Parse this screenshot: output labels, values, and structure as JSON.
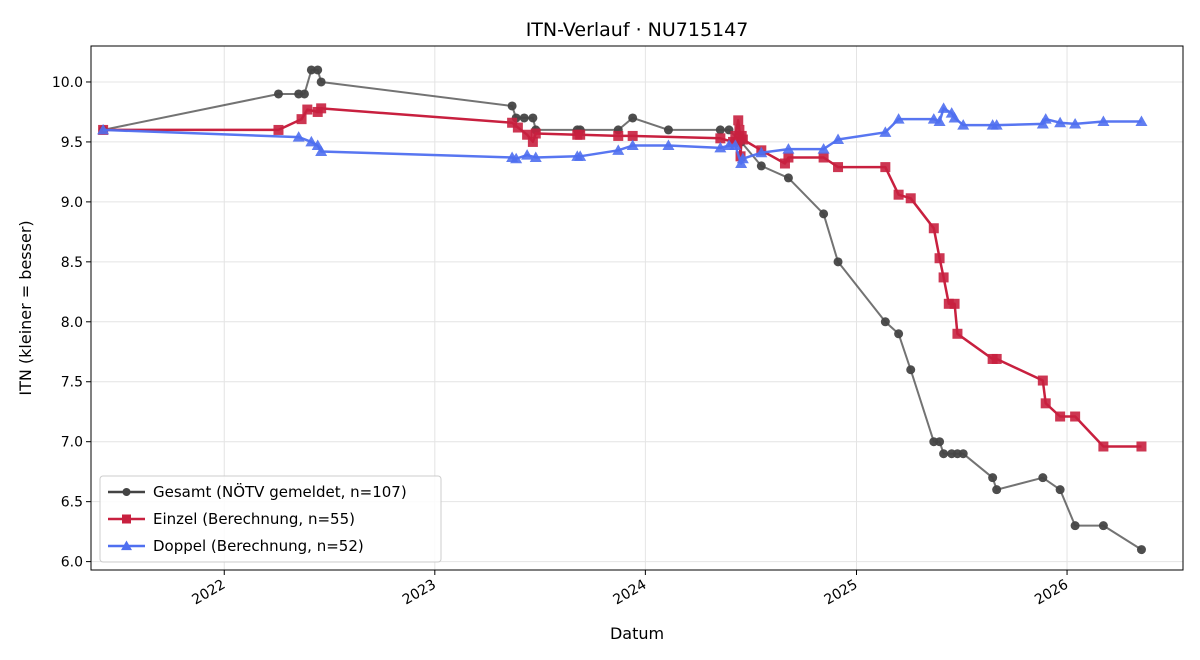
{
  "chart_data": {
    "type": "line",
    "title": "ITN-Verlauf · NU715147",
    "xlabel": "Datum",
    "ylabel": "ITN  (kleiner = besser)",
    "x_type": "date",
    "xlim": [
      "2021-05-15",
      "2026-07-21"
    ],
    "ylim": [
      5.93,
      10.3
    ],
    "x_ticks": [
      "2022-01-01",
      "2023-01-01",
      "2024-01-01",
      "2025-01-01",
      "2026-01-01"
    ],
    "x_tick_labels": [
      "2022",
      "2023",
      "2024",
      "2025",
      "2026"
    ],
    "y_ticks": [
      6.0,
      6.5,
      7.0,
      7.5,
      8.0,
      8.5,
      9.0,
      9.5,
      10.0
    ],
    "y_tick_labels": [
      "6.0",
      "6.5",
      "7.0",
      "7.5",
      "8.0",
      "8.5",
      "9.0",
      "9.5",
      "10.0"
    ],
    "grid": true,
    "legend_position": "lower-left",
    "series": [
      {
        "name": "Gesamt (NÖTV gemeldet, n=107)",
        "color": "#444444",
        "marker": "circle",
        "points": [
          [
            "2021-06-05",
            9.6
          ],
          [
            "2022-04-05",
            9.9
          ],
          [
            "2022-05-10",
            9.9
          ],
          [
            "2022-05-20",
            9.9
          ],
          [
            "2022-06-01",
            10.1
          ],
          [
            "2022-06-12",
            10.1
          ],
          [
            "2022-06-18",
            10.0
          ],
          [
            "2023-05-15",
            9.8
          ],
          [
            "2023-05-22",
            9.7
          ],
          [
            "2023-06-05",
            9.7
          ],
          [
            "2023-06-20",
            9.7
          ],
          [
            "2023-06-25",
            9.6
          ],
          [
            "2023-09-05",
            9.6
          ],
          [
            "2023-09-10",
            9.6
          ],
          [
            "2023-11-15",
            9.6
          ],
          [
            "2023-12-10",
            9.7
          ],
          [
            "2024-02-10",
            9.6
          ],
          [
            "2024-05-10",
            9.6
          ],
          [
            "2024-05-25",
            9.6
          ],
          [
            "2024-06-15",
            9.5
          ],
          [
            "2024-07-20",
            9.3
          ],
          [
            "2024-09-05",
            9.2
          ],
          [
            "2024-11-05",
            8.9
          ],
          [
            "2024-11-30",
            8.5
          ],
          [
            "2025-02-20",
            8.0
          ],
          [
            "2025-03-15",
            7.9
          ],
          [
            "2025-04-05",
            7.6
          ],
          [
            "2025-05-15",
            7.0
          ],
          [
            "2025-05-25",
            7.0
          ],
          [
            "2025-06-01",
            6.9
          ],
          [
            "2025-06-15",
            6.9
          ],
          [
            "2025-06-25",
            6.9
          ],
          [
            "2025-07-05",
            6.9
          ],
          [
            "2025-08-25",
            6.7
          ],
          [
            "2025-09-01",
            6.6
          ],
          [
            "2025-11-20",
            6.7
          ],
          [
            "2025-12-20",
            6.6
          ],
          [
            "2026-01-15",
            6.3
          ],
          [
            "2026-03-05",
            6.3
          ],
          [
            "2026-05-10",
            6.1
          ]
        ]
      },
      {
        "name": "Einzel (Berechnung, n=55)",
        "color": "#c8203f",
        "marker": "square",
        "points": [
          [
            "2021-06-05",
            9.6
          ],
          [
            "2022-04-05",
            9.6
          ],
          [
            "2022-05-15",
            9.69
          ],
          [
            "2022-05-25",
            9.77
          ],
          [
            "2022-06-12",
            9.75
          ],
          [
            "2022-06-18",
            9.78
          ],
          [
            "2023-05-15",
            9.66
          ],
          [
            "2023-05-25",
            9.62
          ],
          [
            "2023-06-10",
            9.56
          ],
          [
            "2023-06-20",
            9.5
          ],
          [
            "2023-06-25",
            9.57
          ],
          [
            "2023-09-05",
            9.56
          ],
          [
            "2023-09-10",
            9.56
          ],
          [
            "2023-11-15",
            9.55
          ],
          [
            "2023-12-10",
            9.55
          ],
          [
            "2024-05-10",
            9.53
          ],
          [
            "2024-06-01",
            9.5
          ],
          [
            "2024-06-05",
            9.55
          ],
          [
            "2024-06-10",
            9.68
          ],
          [
            "2024-06-12",
            9.6
          ],
          [
            "2024-06-14",
            9.38
          ],
          [
            "2024-06-16",
            9.55
          ],
          [
            "2024-06-18",
            9.52
          ],
          [
            "2024-07-20",
            9.43
          ],
          [
            "2024-08-30",
            9.32
          ],
          [
            "2024-09-05",
            9.37
          ],
          [
            "2024-11-05",
            9.37
          ],
          [
            "2024-11-30",
            9.29
          ],
          [
            "2025-02-20",
            9.29
          ],
          [
            "2025-03-15",
            9.06
          ],
          [
            "2025-04-05",
            9.03
          ],
          [
            "2025-05-15",
            8.78
          ],
          [
            "2025-05-25",
            8.53
          ],
          [
            "2025-06-01",
            8.37
          ],
          [
            "2025-06-10",
            8.15
          ],
          [
            "2025-06-20",
            8.15
          ],
          [
            "2025-06-25",
            7.9
          ],
          [
            "2025-08-25",
            7.69
          ],
          [
            "2025-09-01",
            7.69
          ],
          [
            "2025-11-20",
            7.51
          ],
          [
            "2025-11-25",
            7.32
          ],
          [
            "2025-12-20",
            7.21
          ],
          [
            "2026-01-15",
            7.21
          ],
          [
            "2026-03-05",
            6.96
          ],
          [
            "2026-05-10",
            6.96
          ]
        ]
      },
      {
        "name": "Doppel (Berechnung, n=52)",
        "color": "#4f6ff0",
        "marker": "triangle",
        "points": [
          [
            "2021-06-05",
            9.6
          ],
          [
            "2022-05-10",
            9.54
          ],
          [
            "2022-06-01",
            9.5
          ],
          [
            "2022-06-12",
            9.47
          ],
          [
            "2022-06-18",
            9.42
          ],
          [
            "2023-05-15",
            9.37
          ],
          [
            "2023-05-22",
            9.36
          ],
          [
            "2023-06-10",
            9.39
          ],
          [
            "2023-06-25",
            9.37
          ],
          [
            "2023-09-05",
            9.38
          ],
          [
            "2023-09-10",
            9.38
          ],
          [
            "2023-11-15",
            9.43
          ],
          [
            "2023-12-10",
            9.47
          ],
          [
            "2024-02-10",
            9.47
          ],
          [
            "2024-05-10",
            9.45
          ],
          [
            "2024-05-25",
            9.47
          ],
          [
            "2024-06-05",
            9.47
          ],
          [
            "2024-06-15",
            9.32
          ],
          [
            "2024-06-18",
            9.36
          ],
          [
            "2024-07-20",
            9.41
          ],
          [
            "2024-09-05",
            9.44
          ],
          [
            "2024-11-05",
            9.44
          ],
          [
            "2024-11-30",
            9.52
          ],
          [
            "2025-02-20",
            9.58
          ],
          [
            "2025-03-15",
            9.69
          ],
          [
            "2025-05-15",
            9.69
          ],
          [
            "2025-05-25",
            9.67
          ],
          [
            "2025-06-01",
            9.78
          ],
          [
            "2025-06-15",
            9.74
          ],
          [
            "2025-06-20",
            9.7
          ],
          [
            "2025-07-05",
            9.64
          ],
          [
            "2025-08-25",
            9.64
          ],
          [
            "2025-09-01",
            9.64
          ],
          [
            "2025-11-20",
            9.65
          ],
          [
            "2025-11-25",
            9.69
          ],
          [
            "2025-12-20",
            9.66
          ],
          [
            "2026-01-15",
            9.65
          ],
          [
            "2026-03-05",
            9.67
          ],
          [
            "2026-05-10",
            9.67
          ]
        ]
      }
    ]
  }
}
